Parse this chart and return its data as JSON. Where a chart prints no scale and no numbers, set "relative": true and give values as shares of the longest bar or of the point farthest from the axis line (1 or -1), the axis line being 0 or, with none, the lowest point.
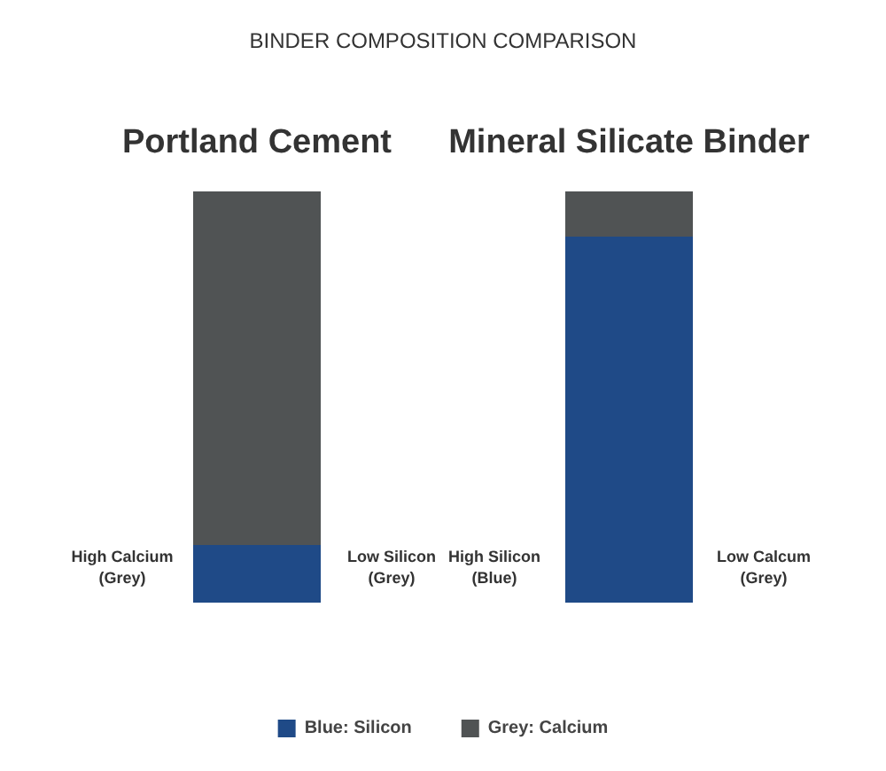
{
  "chart_data": {
    "type": "bar",
    "title": "BINDER COMPOSITION COMPARISON",
    "categories": [
      "Portland Cement",
      "Mineral Silicate Binder"
    ],
    "stacked": true,
    "relative": true,
    "series": [
      {
        "name": "Blue: Silicon",
        "color": "#1f4a87",
        "values": [
          0.14,
          0.89
        ]
      },
      {
        "name": "Grey: Calcium",
        "color": "#505354",
        "values": [
          0.86,
          0.11
        ]
      }
    ],
    "annotations": [
      "High Calcium\n(Grey)",
      "Low Silicon\n(Grey)",
      "High Silicon\n(Blue)",
      "Low Calcum\n(Grey)"
    ],
    "legend": "bottom"
  }
}
